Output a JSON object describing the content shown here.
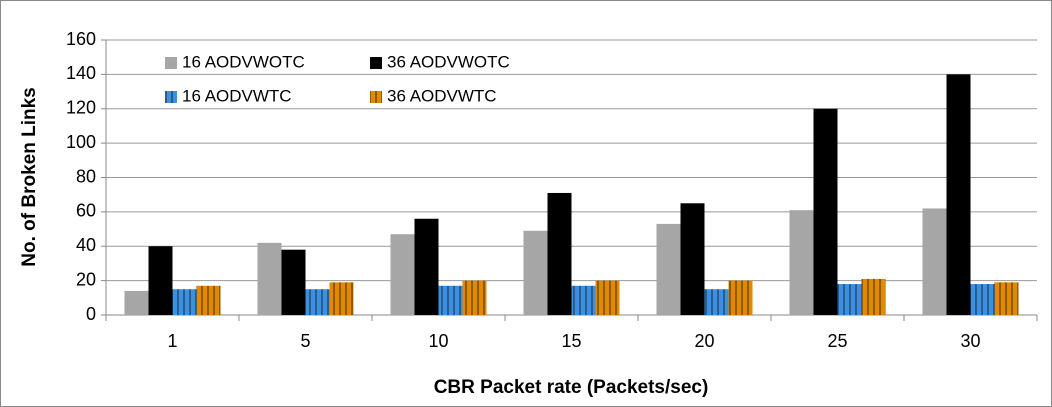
{
  "chart_data": {
    "type": "bar",
    "x_label": "CBR Packet rate (Packets/sec)",
    "y_label": "No. of Broken Links",
    "categories": [
      "1",
      "5",
      "10",
      "15",
      "20",
      "25",
      "30"
    ],
    "series": [
      {
        "name": "16 AODVWOTC",
        "color": "#a6a6a6",
        "values": [
          14,
          42,
          47,
          49,
          53,
          61,
          62
        ]
      },
      {
        "name": "36 AODVWOTC",
        "color": "#000000",
        "values": [
          40,
          38,
          56,
          71,
          65,
          120,
          140
        ]
      },
      {
        "name": "16 AODVWTC",
        "color": "#3d8fe0",
        "striped": true,
        "values": [
          15,
          15,
          17,
          17,
          15,
          18,
          18
        ]
      },
      {
        "name": "36 AODVWTC",
        "color": "#e08a00",
        "striped": true,
        "values": [
          17,
          19,
          20,
          20,
          20,
          21,
          19
        ]
      }
    ],
    "ylim": [
      0,
      160
    ],
    "yticks": [
      0,
      20,
      40,
      60,
      80,
      100,
      120,
      140,
      160
    ],
    "grid": true
  }
}
